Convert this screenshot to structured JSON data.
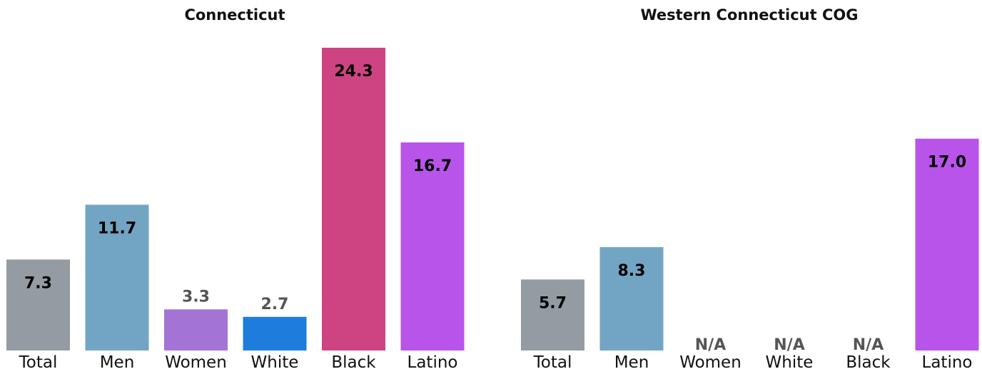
{
  "chart_data": [
    {
      "type": "bar",
      "title": "Connecticut",
      "categories": [
        "Total",
        "Men",
        "Women",
        "White",
        "Black",
        "Latino"
      ],
      "values": [
        7.3,
        11.7,
        3.3,
        2.7,
        24.3,
        16.7
      ],
      "value_labels": [
        "7.3",
        "11.7",
        "3.3",
        "2.7",
        "24.3",
        "16.7"
      ],
      "colors": [
        "#959ba3",
        "#72a5c3",
        "#a374d6",
        "#1e7ddc",
        "#ce4482",
        "#b854ea"
      ],
      "ylim": [
        0,
        24.3
      ],
      "grid": false,
      "legend": "none"
    },
    {
      "type": "bar",
      "title": "Western Connecticut COG",
      "categories": [
        "Total",
        "Men",
        "Women",
        "White",
        "Black",
        "Latino"
      ],
      "values": [
        5.7,
        8.3,
        null,
        null,
        null,
        17.0
      ],
      "value_labels": [
        "5.7",
        "8.3",
        "N/A",
        "N/A",
        "N/A",
        "17.0"
      ],
      "colors": [
        "#959ba3",
        "#72a5c3",
        "#a374d6",
        "#1e7ddc",
        "#ce4482",
        "#b854ea"
      ],
      "ylim": [
        0,
        24.3
      ],
      "grid": false,
      "legend": "none"
    }
  ]
}
